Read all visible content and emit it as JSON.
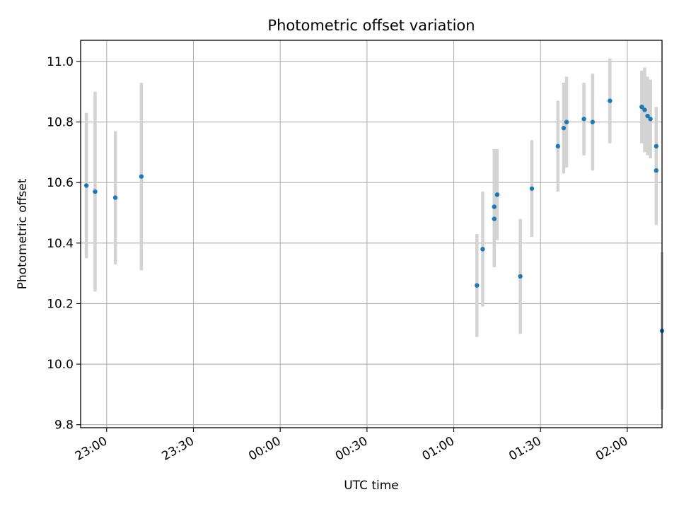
{
  "chart_data": {
    "type": "scatter",
    "title": "Photometric offset variation",
    "xlabel": "UTC time",
    "ylabel": "Photometric offset",
    "x_axis_kind": "time",
    "xlim": [
      "22:51",
      "02:12"
    ],
    "ylim": [
      9.79,
      11.07
    ],
    "grid": true,
    "x_ticks": [
      "23:00",
      "23:30",
      "00:00",
      "00:30",
      "01:00",
      "01:30",
      "02:00"
    ],
    "y_ticks": [
      "9.8",
      "10.0",
      "10.2",
      "10.4",
      "10.6",
      "10.8",
      "11.0"
    ],
    "point_color": "#1f77b4",
    "errorbar_color": "#d3d3d3",
    "points": [
      {
        "x": "22:53",
        "y": 10.59,
        "err": 0.24
      },
      {
        "x": "22:56",
        "y": 10.57,
        "err": 0.33
      },
      {
        "x": "23:03",
        "y": 10.55,
        "err": 0.22
      },
      {
        "x": "23:12",
        "y": 10.62,
        "err": 0.31
      },
      {
        "x": "01:08",
        "y": 10.26,
        "err": 0.17
      },
      {
        "x": "01:10",
        "y": 10.38,
        "err": 0.19
      },
      {
        "x": "01:14",
        "y": 10.48,
        "err": 0.16
      },
      {
        "x": "01:14",
        "y": 10.52,
        "err": 0.19
      },
      {
        "x": "01:15",
        "y": 10.56,
        "err": 0.15
      },
      {
        "x": "01:23",
        "y": 10.29,
        "err": 0.19
      },
      {
        "x": "01:27",
        "y": 10.58,
        "err": 0.16
      },
      {
        "x": "01:36",
        "y": 10.72,
        "err": 0.15
      },
      {
        "x": "01:38",
        "y": 10.78,
        "err": 0.15
      },
      {
        "x": "01:39",
        "y": 10.8,
        "err": 0.15
      },
      {
        "x": "01:45",
        "y": 10.81,
        "err": 0.12
      },
      {
        "x": "01:48",
        "y": 10.8,
        "err": 0.16
      },
      {
        "x": "01:54",
        "y": 10.87,
        "err": 0.14
      },
      {
        "x": "02:05",
        "y": 10.85,
        "err": 0.12
      },
      {
        "x": "02:06",
        "y": 10.84,
        "err": 0.14
      },
      {
        "x": "02:07",
        "y": 10.82,
        "err": 0.13
      },
      {
        "x": "02:08",
        "y": 10.81,
        "err": 0.13
      },
      {
        "x": "02:10",
        "y": 10.72,
        "err": 0.13
      },
      {
        "x": "02:10",
        "y": 10.64,
        "err": 0.18
      },
      {
        "x": "02:12",
        "y": 10.11,
        "err": 0.26
      }
    ]
  }
}
